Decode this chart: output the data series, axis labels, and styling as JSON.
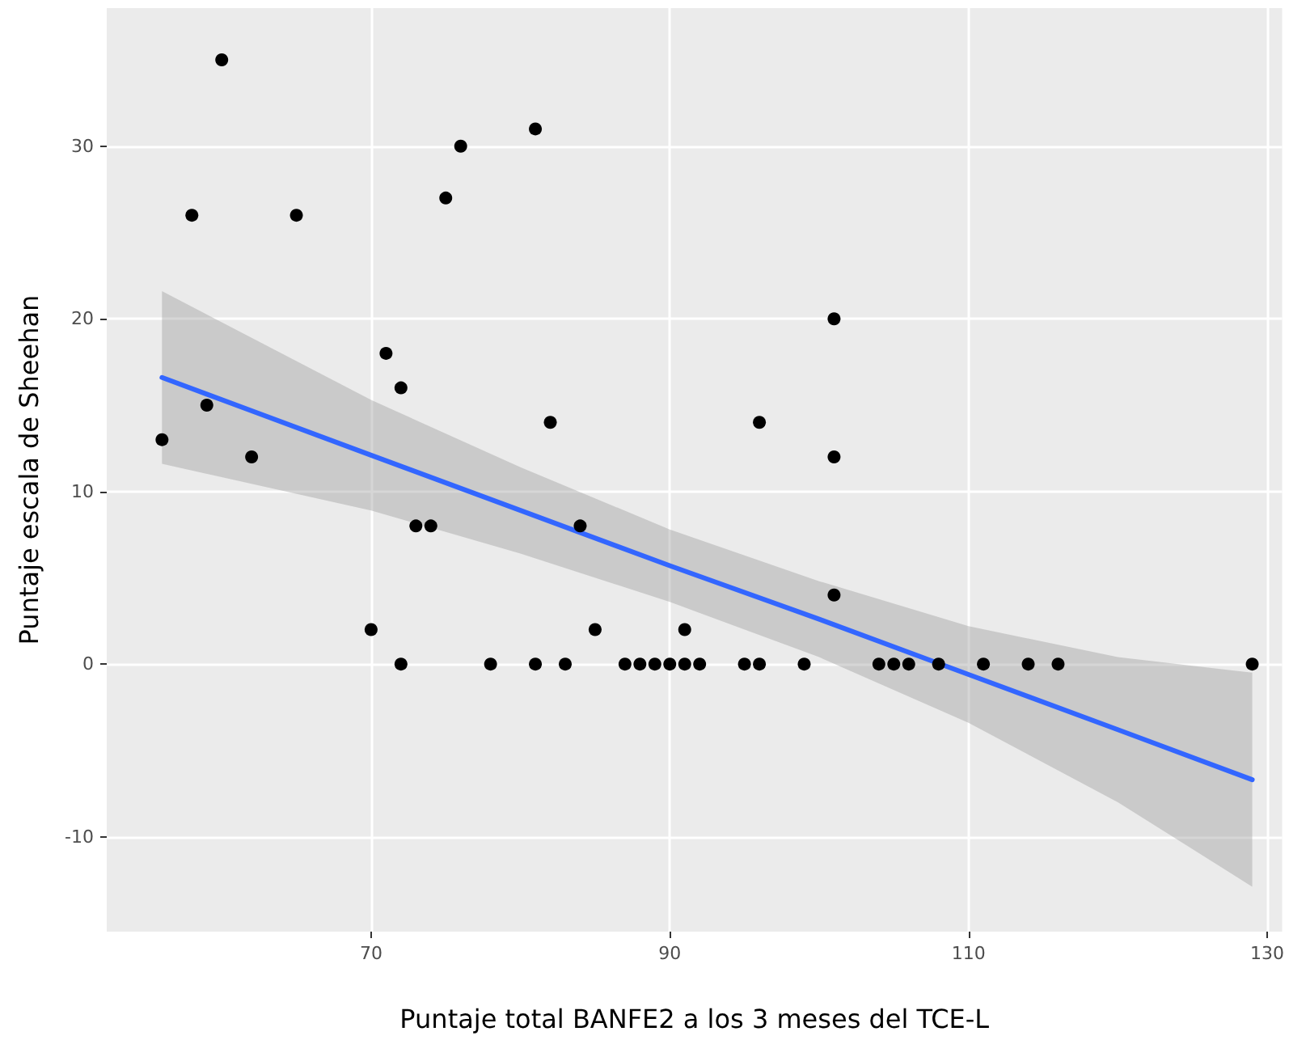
{
  "chart_data": {
    "type": "scatter",
    "xlabel": "Puntaje total BANFE2 a los 3 meses del TCE-L",
    "ylabel": "Puntaje escala de Sheehan",
    "xlim": [
      52.3,
      131
    ],
    "ylim": [
      -15.5,
      38
    ],
    "xticks": [
      70,
      90,
      110,
      130
    ],
    "yticks": [
      -10,
      0,
      10,
      20,
      30
    ],
    "grid": true,
    "series": [
      {
        "color": "#000000",
        "marker": "circle",
        "x": [
          60,
          58,
          65,
          76,
          75,
          56,
          59,
          62,
          71,
          72,
          73,
          74,
          70,
          72,
          78,
          81,
          82,
          84,
          85,
          91,
          96,
          101,
          101,
          101,
          81,
          83,
          87,
          88,
          89,
          90,
          91,
          92,
          95,
          96,
          99,
          104,
          105,
          106,
          108,
          111,
          114,
          116,
          129
        ],
        "values": [
          35,
          26,
          26,
          30,
          27,
          13,
          15,
          12,
          18,
          16,
          8,
          8,
          2,
          0,
          0,
          31,
          14,
          8,
          2,
          2,
          14,
          20,
          12,
          4,
          0,
          0,
          0,
          0,
          0,
          0,
          0,
          0,
          0,
          0,
          0,
          0,
          0,
          0,
          0,
          0,
          0,
          0,
          0
        ]
      },
      {
        "type": "line",
        "color": "#3366ff",
        "marker": "none",
        "line_style": "solid",
        "x": [
          56,
          70,
          80,
          90,
          100,
          110,
          120,
          129
        ],
        "values": [
          16.6,
          12.1,
          8.9,
          5.7,
          2.6,
          -0.6,
          -3.8,
          -6.7
        ],
        "lower": [
          11.6,
          8.9,
          6.4,
          3.6,
          0.4,
          -3.4,
          -8.0,
          -12.9
        ],
        "upper": [
          21.6,
          15.3,
          11.4,
          7.8,
          4.8,
          2.2,
          0.4,
          -0.5
        ]
      }
    ]
  }
}
